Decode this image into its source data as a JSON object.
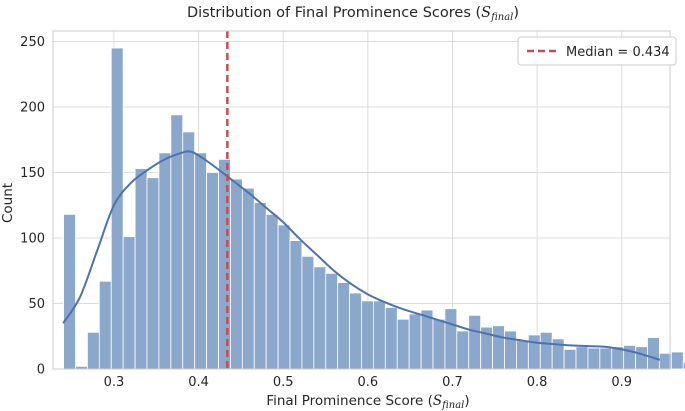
{
  "chart_data": {
    "type": "bar",
    "title_main": "Distribution of Final Prominence Scores (",
    "title_symbol": "S",
    "title_subscript": "final",
    "title_close": ")",
    "xlabel_main": "Final Prominence Score (",
    "xlabel_symbol": "S",
    "xlabel_subscript": "final",
    "xlabel_close": ")",
    "ylabel": "Count",
    "xlim": [
      0.228,
      0.957
    ],
    "ylim": [
      0,
      258
    ],
    "x_ticks": [
      0.3,
      0.4,
      0.5,
      0.6,
      0.7,
      0.8,
      0.9
    ],
    "x_tick_labels": [
      "0.3",
      "0.4",
      "0.5",
      "0.6",
      "0.7",
      "0.8",
      "0.9"
    ],
    "y_ticks": [
      0,
      50,
      100,
      150,
      200,
      250
    ],
    "y_tick_labels": [
      "0",
      "50",
      "100",
      "150",
      "200",
      "250"
    ],
    "grid": true,
    "bins": {
      "start": 0.2405,
      "width": 0.01408,
      "counts": [
        118,
        2,
        28,
        67,
        245,
        101,
        153,
        146,
        165,
        194,
        181,
        165,
        150,
        160,
        145,
        138,
        127,
        118,
        110,
        98,
        86,
        78,
        73,
        66,
        58,
        52,
        52,
        47,
        38,
        42,
        45,
        38,
        46,
        29,
        41,
        32,
        33,
        29,
        22,
        26,
        28,
        23,
        15,
        17,
        16,
        16,
        17,
        18,
        17,
        24,
        12,
        13,
        5
      ],
      "color": "#8ba7cc"
    },
    "kde": {
      "x": [
        0.24,
        0.26,
        0.28,
        0.3,
        0.32,
        0.34,
        0.36,
        0.38,
        0.39,
        0.4,
        0.42,
        0.44,
        0.46,
        0.48,
        0.5,
        0.52,
        0.54,
        0.56,
        0.58,
        0.6,
        0.62,
        0.64,
        0.66,
        0.68,
        0.7,
        0.72,
        0.74,
        0.76,
        0.78,
        0.8,
        0.82,
        0.84,
        0.86,
        0.88,
        0.9,
        0.92,
        0.945
      ],
      "y": [
        35,
        55,
        90,
        125,
        142,
        152,
        160,
        165,
        166,
        163,
        154,
        144,
        134,
        123,
        112,
        99,
        87,
        75,
        65,
        57,
        51,
        46,
        42,
        38,
        34,
        30,
        27,
        24,
        22,
        20,
        19,
        18,
        17.5,
        17,
        15,
        12,
        7
      ],
      "color": "#4c72b0"
    },
    "median": {
      "value": 0.434,
      "label": "Median = 0.434",
      "color": "#c44e52"
    },
    "legend_position": "top-right"
  }
}
